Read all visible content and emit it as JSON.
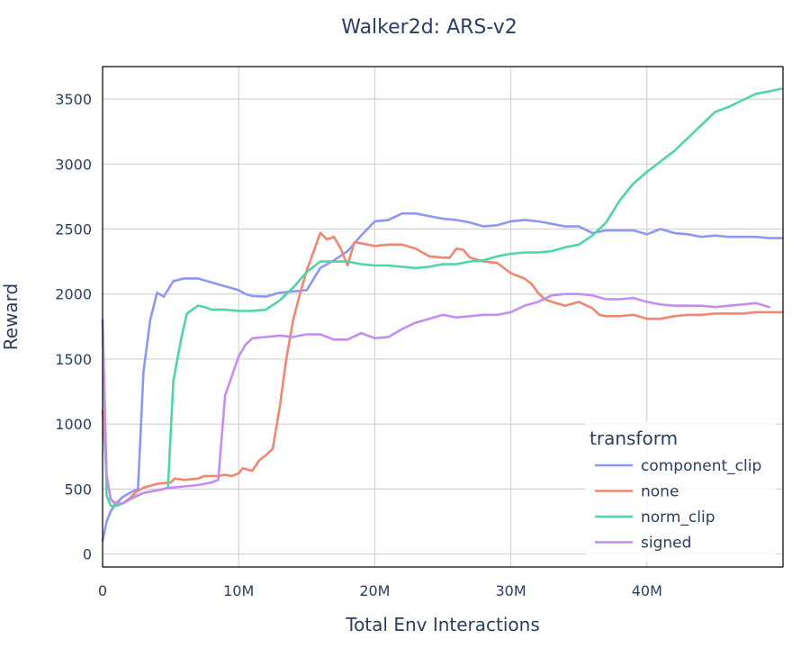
{
  "chart_data": {
    "type": "line",
    "title": "Walker2d: ARS-v2",
    "xlabel": "Total Env Interactions",
    "ylabel": "Reward",
    "xlim": [
      0,
      50000000
    ],
    "ylim": [
      -100,
      3750
    ],
    "xticks": [
      0,
      10000000,
      20000000,
      30000000,
      40000000
    ],
    "xtick_labels": [
      "0",
      "10M",
      "20M",
      "30M",
      "40M"
    ],
    "yticks": [
      0,
      500,
      1000,
      1500,
      2000,
      2500,
      3000,
      3500
    ],
    "ytick_labels": [
      "0",
      "500",
      "1000",
      "1500",
      "2000",
      "2500",
      "3000",
      "3500"
    ],
    "grid": true,
    "legend": {
      "title": "transform",
      "position": "bottom-right"
    },
    "series": [
      {
        "name": "component_clip",
        "color": "#8f96f4",
        "points": [
          [
            0,
            100
          ],
          [
            300000,
            250
          ],
          [
            600000,
            330
          ],
          [
            1000000,
            390
          ],
          [
            1500000,
            440
          ],
          [
            2000000,
            470
          ],
          [
            2600000,
            500
          ],
          [
            3000000,
            1400
          ],
          [
            3500000,
            1800
          ],
          [
            4000000,
            2010
          ],
          [
            4500000,
            1980
          ],
          [
            5200000,
            2100
          ],
          [
            6000000,
            2120
          ],
          [
            7000000,
            2120
          ],
          [
            8000000,
            2090
          ],
          [
            9000000,
            2060
          ],
          [
            10000000,
            2030
          ],
          [
            10500000,
            2000
          ],
          [
            11000000,
            1985
          ],
          [
            12000000,
            1980
          ],
          [
            13000000,
            2010
          ],
          [
            14000000,
            2020
          ],
          [
            15000000,
            2030
          ],
          [
            16000000,
            2200
          ],
          [
            17000000,
            2260
          ],
          [
            18000000,
            2330
          ],
          [
            19000000,
            2450
          ],
          [
            20000000,
            2560
          ],
          [
            21000000,
            2570
          ],
          [
            22000000,
            2620
          ],
          [
            23000000,
            2620
          ],
          [
            24000000,
            2600
          ],
          [
            25000000,
            2580
          ],
          [
            26000000,
            2570
          ],
          [
            27000000,
            2550
          ],
          [
            28000000,
            2520
          ],
          [
            29000000,
            2530
          ],
          [
            30000000,
            2560
          ],
          [
            31000000,
            2570
          ],
          [
            32000000,
            2560
          ],
          [
            33000000,
            2540
          ],
          [
            34000000,
            2520
          ],
          [
            35000000,
            2520
          ],
          [
            36000000,
            2470
          ],
          [
            37000000,
            2490
          ],
          [
            38000000,
            2490
          ],
          [
            39000000,
            2490
          ],
          [
            40000000,
            2460
          ],
          [
            41000000,
            2500
          ],
          [
            42000000,
            2470
          ],
          [
            43000000,
            2460
          ],
          [
            44000000,
            2440
          ],
          [
            45000000,
            2450
          ],
          [
            46000000,
            2440
          ],
          [
            47000000,
            2440
          ],
          [
            48000000,
            2440
          ],
          [
            49000000,
            2430
          ],
          [
            49900000,
            2430
          ]
        ]
      },
      {
        "name": "none",
        "color": "#ef8771",
        "points": [
          [
            0,
            1100
          ],
          [
            300000,
            600
          ],
          [
            600000,
            420
          ],
          [
            1000000,
            380
          ],
          [
            1500000,
            390
          ],
          [
            2000000,
            430
          ],
          [
            2500000,
            480
          ],
          [
            3000000,
            510
          ],
          [
            4000000,
            540
          ],
          [
            5000000,
            550
          ],
          [
            5300000,
            580
          ],
          [
            6000000,
            570
          ],
          [
            7000000,
            580
          ],
          [
            7500000,
            600
          ],
          [
            8500000,
            600
          ],
          [
            9000000,
            610
          ],
          [
            9500000,
            600
          ],
          [
            10000000,
            620
          ],
          [
            10300000,
            660
          ],
          [
            11000000,
            640
          ],
          [
            11500000,
            720
          ],
          [
            12000000,
            760
          ],
          [
            12500000,
            810
          ],
          [
            13000000,
            1120
          ],
          [
            13500000,
            1500
          ],
          [
            14000000,
            1800
          ],
          [
            14500000,
            2000
          ],
          [
            15000000,
            2180
          ],
          [
            16000000,
            2470
          ],
          [
            16500000,
            2420
          ],
          [
            17000000,
            2440
          ],
          [
            17500000,
            2350
          ],
          [
            18000000,
            2220
          ],
          [
            18500000,
            2400
          ],
          [
            19000000,
            2390
          ],
          [
            19500000,
            2380
          ],
          [
            20000000,
            2370
          ],
          [
            21000000,
            2380
          ],
          [
            22000000,
            2380
          ],
          [
            23000000,
            2350
          ],
          [
            24000000,
            2290
          ],
          [
            25000000,
            2280
          ],
          [
            25500000,
            2280
          ],
          [
            26000000,
            2350
          ],
          [
            26500000,
            2340
          ],
          [
            27000000,
            2280
          ],
          [
            28000000,
            2250
          ],
          [
            29000000,
            2240
          ],
          [
            30000000,
            2160
          ],
          [
            31000000,
            2120
          ],
          [
            31500000,
            2080
          ],
          [
            32000000,
            2010
          ],
          [
            32500000,
            1960
          ],
          [
            33000000,
            1940
          ],
          [
            34000000,
            1910
          ],
          [
            35000000,
            1940
          ],
          [
            36000000,
            1890
          ],
          [
            36500000,
            1840
          ],
          [
            37000000,
            1830
          ],
          [
            38000000,
            1830
          ],
          [
            39000000,
            1840
          ],
          [
            40000000,
            1810
          ],
          [
            41000000,
            1810
          ],
          [
            42000000,
            1830
          ],
          [
            43000000,
            1840
          ],
          [
            44000000,
            1840
          ],
          [
            45000000,
            1850
          ],
          [
            46000000,
            1850
          ],
          [
            47000000,
            1850
          ],
          [
            48000000,
            1860
          ],
          [
            49000000,
            1860
          ],
          [
            49900000,
            1860
          ]
        ]
      },
      {
        "name": "norm_clip",
        "color": "#4fd6a3",
        "points": [
          [
            0,
            1800
          ],
          [
            300000,
            450
          ],
          [
            600000,
            370
          ],
          [
            1000000,
            370
          ],
          [
            1500000,
            390
          ],
          [
            2000000,
            420
          ],
          [
            3000000,
            470
          ],
          [
            4000000,
            490
          ],
          [
            4800000,
            510
          ],
          [
            5200000,
            1330
          ],
          [
            5800000,
            1670
          ],
          [
            6200000,
            1850
          ],
          [
            7000000,
            1910
          ],
          [
            7500000,
            1900
          ],
          [
            8000000,
            1880
          ],
          [
            9000000,
            1880
          ],
          [
            10000000,
            1870
          ],
          [
            11000000,
            1870
          ],
          [
            12000000,
            1880
          ],
          [
            13000000,
            1950
          ],
          [
            14000000,
            2050
          ],
          [
            15000000,
            2170
          ],
          [
            16000000,
            2250
          ],
          [
            17000000,
            2250
          ],
          [
            18000000,
            2250
          ],
          [
            19000000,
            2230
          ],
          [
            20000000,
            2220
          ],
          [
            21000000,
            2220
          ],
          [
            22000000,
            2210
          ],
          [
            23000000,
            2200
          ],
          [
            24000000,
            2210
          ],
          [
            25000000,
            2230
          ],
          [
            26000000,
            2230
          ],
          [
            27000000,
            2250
          ],
          [
            28000000,
            2260
          ],
          [
            29000000,
            2290
          ],
          [
            30000000,
            2310
          ],
          [
            31000000,
            2320
          ],
          [
            32000000,
            2320
          ],
          [
            33000000,
            2330
          ],
          [
            34000000,
            2360
          ],
          [
            35000000,
            2380
          ],
          [
            36000000,
            2450
          ],
          [
            37000000,
            2550
          ],
          [
            38000000,
            2720
          ],
          [
            39000000,
            2850
          ],
          [
            40000000,
            2940
          ],
          [
            41000000,
            3020
          ],
          [
            42000000,
            3100
          ],
          [
            43000000,
            3200
          ],
          [
            44000000,
            3300
          ],
          [
            45000000,
            3400
          ],
          [
            46000000,
            3440
          ],
          [
            47000000,
            3490
          ],
          [
            48000000,
            3540
          ],
          [
            49000000,
            3560
          ],
          [
            49900000,
            3580
          ]
        ]
      },
      {
        "name": "signed",
        "color": "#c48ef0",
        "points": [
          [
            0,
            1800
          ],
          [
            300000,
            600
          ],
          [
            600000,
            420
          ],
          [
            1000000,
            390
          ],
          [
            1500000,
            390
          ],
          [
            2000000,
            420
          ],
          [
            2500000,
            450
          ],
          [
            3000000,
            470
          ],
          [
            4000000,
            490
          ],
          [
            5000000,
            510
          ],
          [
            6000000,
            520
          ],
          [
            7000000,
            530
          ],
          [
            8000000,
            550
          ],
          [
            8500000,
            570
          ],
          [
            9000000,
            1220
          ],
          [
            10000000,
            1520
          ],
          [
            10500000,
            1610
          ],
          [
            11000000,
            1660
          ],
          [
            12000000,
            1670
          ],
          [
            13000000,
            1680
          ],
          [
            14000000,
            1670
          ],
          [
            14500000,
            1680
          ],
          [
            15000000,
            1690
          ],
          [
            16000000,
            1690
          ],
          [
            17000000,
            1650
          ],
          [
            18000000,
            1650
          ],
          [
            19000000,
            1700
          ],
          [
            20000000,
            1660
          ],
          [
            21000000,
            1670
          ],
          [
            22000000,
            1730
          ],
          [
            23000000,
            1780
          ],
          [
            24000000,
            1810
          ],
          [
            25000000,
            1840
          ],
          [
            26000000,
            1820
          ],
          [
            27000000,
            1830
          ],
          [
            28000000,
            1840
          ],
          [
            29000000,
            1840
          ],
          [
            30000000,
            1860
          ],
          [
            31000000,
            1910
          ],
          [
            32000000,
            1940
          ],
          [
            33000000,
            1990
          ],
          [
            34000000,
            2000
          ],
          [
            35000000,
            2000
          ],
          [
            36000000,
            1990
          ],
          [
            37000000,
            1960
          ],
          [
            38000000,
            1960
          ],
          [
            39000000,
            1970
          ],
          [
            40000000,
            1940
          ],
          [
            41000000,
            1920
          ],
          [
            42000000,
            1910
          ],
          [
            43000000,
            1910
          ],
          [
            44000000,
            1910
          ],
          [
            45000000,
            1900
          ],
          [
            46000000,
            1910
          ],
          [
            47000000,
            1920
          ],
          [
            48000000,
            1930
          ],
          [
            49000000,
            1900
          ]
        ]
      }
    ]
  }
}
